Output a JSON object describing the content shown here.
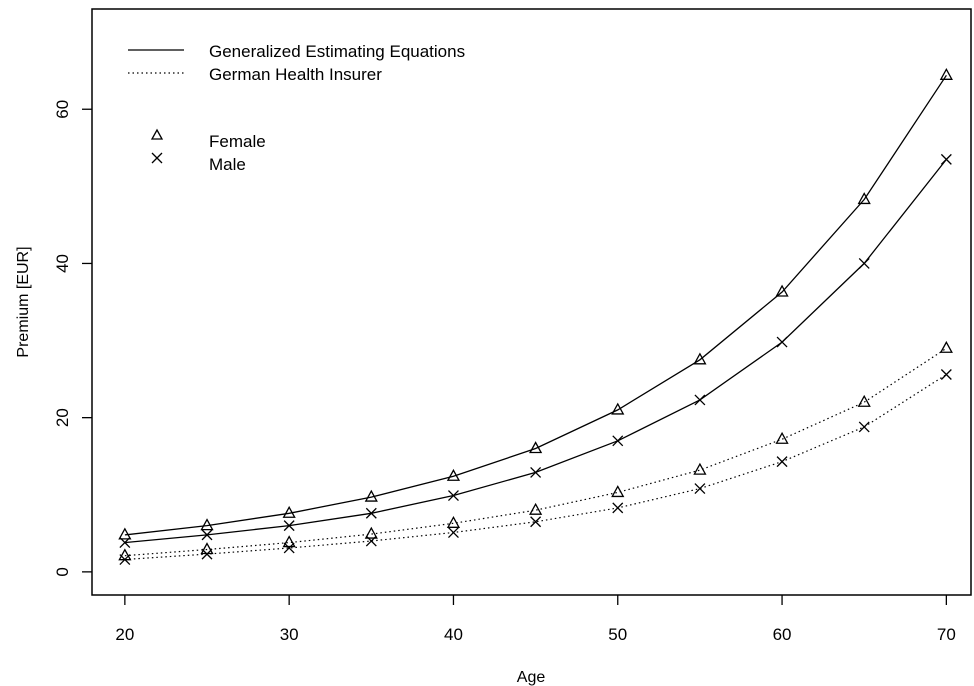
{
  "chart_data": {
    "type": "line",
    "xlabel": "Age",
    "ylabel": "Premium [EUR]",
    "xlim": [
      18,
      71.5
    ],
    "ylim": [
      -3,
      73
    ],
    "x_ticks": [
      20,
      30,
      40,
      50,
      60,
      70
    ],
    "y_ticks": [
      0,
      20,
      40,
      60
    ],
    "x": [
      20,
      25,
      30,
      35,
      40,
      45,
      50,
      55,
      60,
      65,
      70
    ],
    "series": [
      {
        "method": "gee",
        "sex": "female",
        "values": [
          4.8,
          6.0,
          7.6,
          9.7,
          12.4,
          16.0,
          21.0,
          27.5,
          36.3,
          48.3,
          64.4
        ]
      },
      {
        "method": "gee",
        "sex": "male",
        "values": [
          3.8,
          4.8,
          6.0,
          7.6,
          9.9,
          12.9,
          17.0,
          22.3,
          29.8,
          40.0,
          53.5
        ]
      },
      {
        "method": "insurer",
        "sex": "female",
        "values": [
          2.1,
          2.9,
          3.8,
          4.9,
          6.3,
          8.0,
          10.3,
          13.2,
          17.2,
          22.0,
          29.0
        ]
      },
      {
        "method": "insurer",
        "sex": "male",
        "values": [
          1.6,
          2.3,
          3.1,
          4.0,
          5.1,
          6.5,
          8.3,
          10.8,
          14.3,
          18.8,
          25.6
        ]
      }
    ],
    "legend": {
      "lines": [
        {
          "key": "gee",
          "label": "Generalized Estimating Equations",
          "style": "solid"
        },
        {
          "key": "insurer",
          "label": "German Health Insurer",
          "style": "dotted"
        }
      ],
      "markers": [
        {
          "key": "female",
          "label": "Female",
          "symbol": "triangle"
        },
        {
          "key": "male",
          "label": "Male",
          "symbol": "cross"
        }
      ],
      "position": "top-left"
    },
    "grid": false
  }
}
